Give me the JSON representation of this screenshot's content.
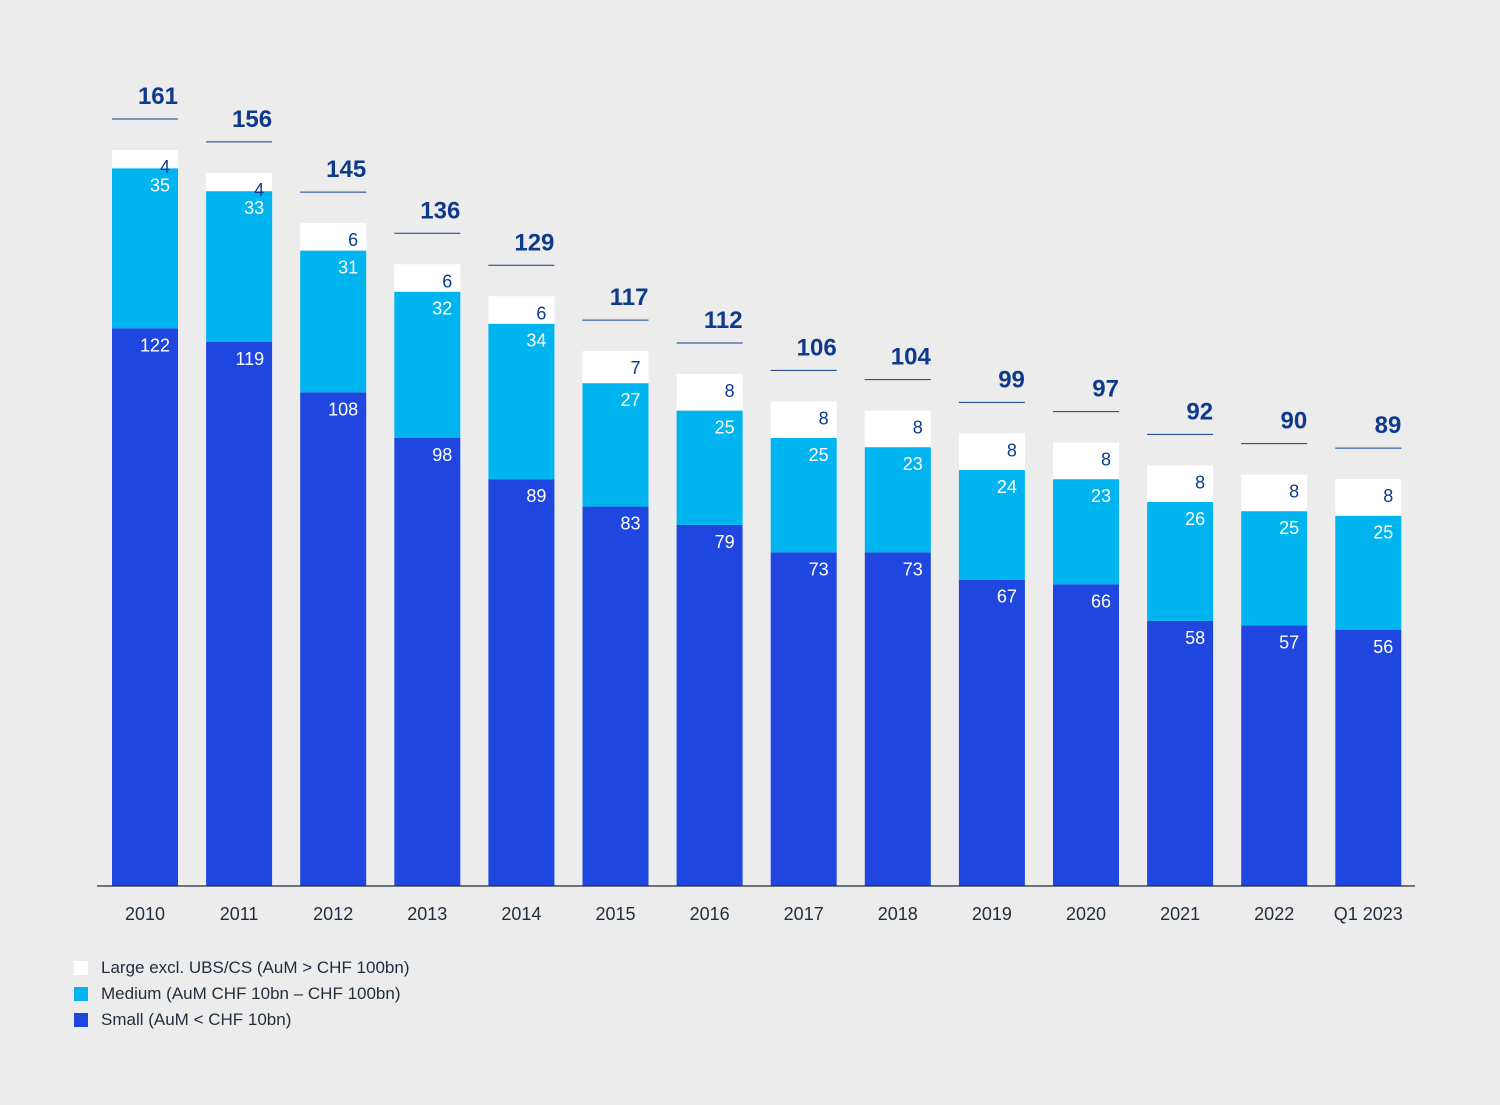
{
  "chart_data": {
    "type": "bar",
    "stacked": true,
    "categories": [
      "2010",
      "2011",
      "2012",
      "2013",
      "2014",
      "2015",
      "2016",
      "2017",
      "2018",
      "2019",
      "2020",
      "2021",
      "2022",
      "Q1 2023"
    ],
    "series": [
      {
        "name": "Small (AuM < CHF 10bn)",
        "color": "#2046e0",
        "values": [
          122,
          119,
          108,
          98,
          89,
          83,
          79,
          73,
          73,
          67,
          66,
          58,
          57,
          56
        ]
      },
      {
        "name": "Medium (AuM CHF 10bn – CHF 100bn)",
        "color": "#00b4f0",
        "values": [
          35,
          33,
          31,
          32,
          34,
          27,
          25,
          25,
          23,
          24,
          23,
          26,
          25,
          25
        ]
      },
      {
        "name": "Large excl. UBS/CS (AuM > CHF 100bn)",
        "color": "#ffffff",
        "values": [
          4,
          4,
          6,
          6,
          6,
          7,
          8,
          8,
          8,
          8,
          8,
          8,
          8,
          8
        ]
      }
    ],
    "totals": [
      161,
      156,
      145,
      136,
      129,
      117,
      112,
      106,
      104,
      99,
      97,
      92,
      90,
      89
    ],
    "total_label_color": "#0e3a8c",
    "label_color_on_dark": "#ffffff",
    "label_color_on_light": "#0e3a8c",
    "ylim": [
      0,
      161
    ],
    "grid": false,
    "legend_position": "bottom-left"
  }
}
